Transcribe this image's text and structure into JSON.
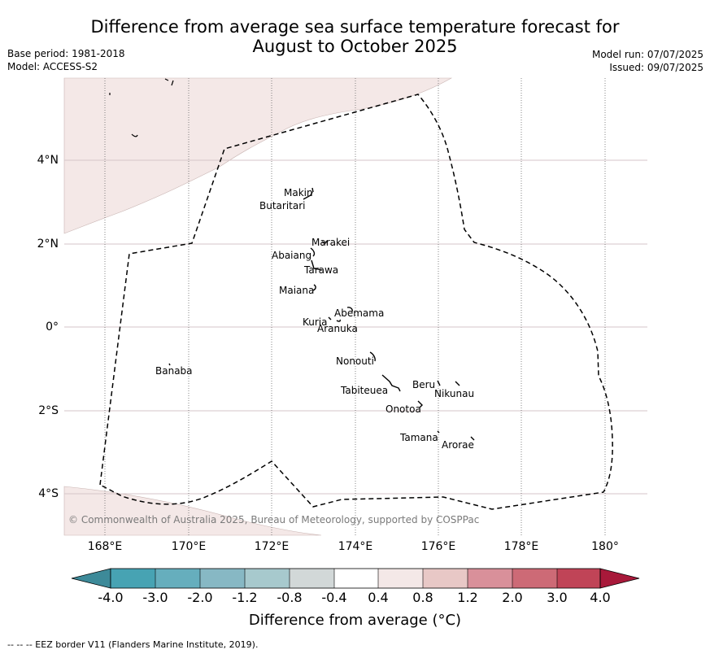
{
  "header": {
    "title_line1": "Difference from average sea surface temperature forecast for",
    "title_line2": "August to October 2025",
    "base_period": "Base period: 1981-2018",
    "model": "Model: ACCESS-S2",
    "model_run": "Model run: 07/07/2025",
    "issued": "Issued: 09/07/2025"
  },
  "map": {
    "lat_labels": [
      "4°N",
      "2°N",
      "0°",
      "2°S",
      "4°S"
    ],
    "lon_labels": [
      "168°E",
      "170°E",
      "172°E",
      "174°E",
      "176°E",
      "178°E",
      "180°"
    ],
    "islands": [
      "Makin",
      "Butaritari",
      "Marakei",
      "Abaiang",
      "Tarawa",
      "Maiana",
      "Abemama",
      "Kuria",
      "Aranuka",
      "Banaba",
      "Nonouti",
      "Tabiteuea",
      "Beru",
      "Nikunau",
      "Onotoa",
      "Tamana",
      "Arorae"
    ],
    "anomaly_fill_color": "#f4e8e7",
    "copyright": "© Commonwealth of Australia 2025, Bureau of Meteorology, supported by COSPPac"
  },
  "colorbar": {
    "tick_labels": [
      "-4.0",
      "-3.0",
      "-2.0",
      "-1.2",
      "-0.8",
      "-0.4",
      "0.4",
      "0.8",
      "1.2",
      "2.0",
      "3.0",
      "4.0"
    ],
    "colors": [
      "#3d8a99",
      "#47a3b3",
      "#66aebd",
      "#87b8c4",
      "#a7c9cd",
      "#d2d8d8",
      "#ffffff",
      "#f4e8e7",
      "#e8c8c6",
      "#d9909a",
      "#cd6a76",
      "#c04457",
      "#a8193a"
    ],
    "label": "Difference from average (°C)"
  },
  "footer": {
    "legend_line": "--  --  -- EEZ border V11 (Flanders Marine Institute, 2019)."
  }
}
